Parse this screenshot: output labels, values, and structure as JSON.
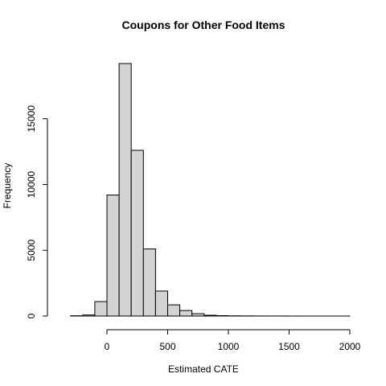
{
  "chart_data": {
    "type": "histogram",
    "title": "Coupons for Other Food Items",
    "xlabel": "Estimated CATE",
    "ylabel": "Frequency",
    "xlim": [
      -300,
      2000
    ],
    "ylim": [
      0,
      19200
    ],
    "x_ticks": [
      0,
      500,
      1000,
      1500,
      2000
    ],
    "y_ticks": [
      0,
      5000,
      10000,
      15000
    ],
    "bin_width": 100,
    "bins": [
      {
        "start": -300,
        "end": -200,
        "count": 20
      },
      {
        "start": -200,
        "end": -100,
        "count": 80
      },
      {
        "start": -100,
        "end": 0,
        "count": 1100
      },
      {
        "start": 0,
        "end": 100,
        "count": 9200
      },
      {
        "start": 100,
        "end": 200,
        "count": 19200
      },
      {
        "start": 200,
        "end": 300,
        "count": 12600
      },
      {
        "start": 300,
        "end": 400,
        "count": 5100
      },
      {
        "start": 400,
        "end": 500,
        "count": 1900
      },
      {
        "start": 500,
        "end": 600,
        "count": 850
      },
      {
        "start": 600,
        "end": 700,
        "count": 420
      },
      {
        "start": 700,
        "end": 800,
        "count": 180
      },
      {
        "start": 800,
        "end": 900,
        "count": 60
      },
      {
        "start": 900,
        "end": 1000,
        "count": 30
      },
      {
        "start": 1000,
        "end": 1100,
        "count": 15
      },
      {
        "start": 1100,
        "end": 1200,
        "count": 10
      },
      {
        "start": 1200,
        "end": 1300,
        "count": 6
      },
      {
        "start": 1300,
        "end": 1400,
        "count": 4
      },
      {
        "start": 1400,
        "end": 1500,
        "count": 3
      },
      {
        "start": 1500,
        "end": 1600,
        "count": 2
      },
      {
        "start": 1600,
        "end": 1700,
        "count": 2
      },
      {
        "start": 1700,
        "end": 1800,
        "count": 1
      },
      {
        "start": 1800,
        "end": 1900,
        "count": 1
      },
      {
        "start": 1900,
        "end": 2000,
        "count": 1
      }
    ],
    "colors": {
      "bar_fill": "#d3d3d3",
      "bar_stroke": "#000000"
    },
    "grid": false,
    "legend": "none"
  }
}
